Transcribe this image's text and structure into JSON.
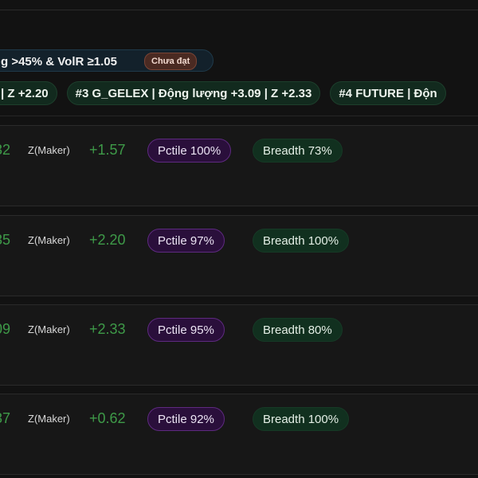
{
  "filter": {
    "text": "g >45% & VolR ≥1.05",
    "status": "Chưa đạt"
  },
  "chips": [
    "| Z +2.20",
    "#3 G_GELEX | Động lượng +3.09 | Z +2.33",
    "#4 FUTURE | Độn"
  ],
  "rows": [
    {
      "lead": "32",
      "z_label": "Z(Maker)",
      "z_value": "+1.57",
      "pctile": "Pctile 100%",
      "breadth": "Breadth 73%"
    },
    {
      "lead": "35",
      "z_label": "Z(Maker)",
      "z_value": "+2.20",
      "pctile": "Pctile 97%",
      "breadth": "Breadth 100%"
    },
    {
      "lead": "09",
      "z_label": "Z(Maker)",
      "z_value": "+2.33",
      "pctile": "Pctile 95%",
      "breadth": "Breadth 80%"
    },
    {
      "lead": "37",
      "z_label": "Z(Maker)",
      "z_value": "+0.62",
      "pctile": "Pctile 92%",
      "breadth": "Breadth 100%"
    }
  ]
}
